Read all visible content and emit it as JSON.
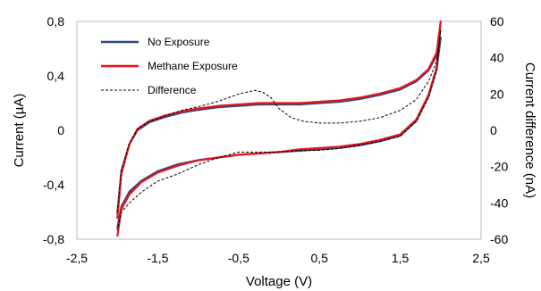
{
  "chart_data": {
    "type": "line",
    "xlabel": "Voltage (V)",
    "ylabel": "Current (µA)",
    "y2label": "Current difference (nA)",
    "xlim": [
      -2.5,
      2.5
    ],
    "ylim": [
      -0.8,
      0.8
    ],
    "y2lim": [
      -60,
      60
    ],
    "grid": false,
    "legend_position": "top-left",
    "x_ticks": [
      "-2,5",
      "-1,5",
      "-0,5",
      "0,5",
      "1,5",
      "2,5"
    ],
    "x_tick_values": [
      -2.5,
      -1.5,
      -0.5,
      0.5,
      1.5,
      2.5
    ],
    "y_ticks": [
      "0,8",
      "0,4",
      "0",
      "-0,4",
      "-0,8"
    ],
    "y_tick_values": [
      0.8,
      0.4,
      0,
      -0.4,
      -0.8
    ],
    "y2_ticks": [
      "60",
      "40",
      "20",
      "0",
      "-20",
      "-40",
      "-60"
    ],
    "y2_tick_values": [
      60,
      40,
      20,
      0,
      -20,
      -40,
      -60
    ],
    "series": [
      {
        "name": "No Exposure",
        "axis": "left",
        "color": "#2e4a7d",
        "dash": "solid",
        "x": [
          -2.0,
          -1.95,
          -1.85,
          -1.75,
          -1.6,
          -1.4,
          -1.2,
          -1.0,
          -0.75,
          -0.5,
          -0.25,
          0.0,
          0.25,
          0.5,
          0.75,
          1.0,
          1.25,
          1.5,
          1.7,
          1.85,
          1.95,
          2.0,
          2.0,
          1.95,
          1.85,
          1.7,
          1.5,
          1.25,
          1.0,
          0.75,
          0.5,
          0.25,
          0.0,
          -0.25,
          -0.5,
          -0.75,
          -1.0,
          -1.25,
          -1.5,
          -1.7,
          -1.85,
          -1.95,
          -2.0
        ],
        "y": [
          -0.62,
          -0.3,
          -0.1,
          0.0,
          0.06,
          0.1,
          0.13,
          0.15,
          0.17,
          0.18,
          0.19,
          0.19,
          0.19,
          0.2,
          0.21,
          0.23,
          0.26,
          0.3,
          0.36,
          0.44,
          0.55,
          0.68,
          0.68,
          0.45,
          0.25,
          0.07,
          -0.04,
          -0.08,
          -0.11,
          -0.13,
          -0.14,
          -0.15,
          -0.16,
          -0.17,
          -0.18,
          -0.2,
          -0.22,
          -0.25,
          -0.3,
          -0.37,
          -0.45,
          -0.56,
          -0.72
        ]
      },
      {
        "name": "Methane Exposure",
        "axis": "left",
        "color": "#e8131b",
        "dash": "solid",
        "x": [
          -2.0,
          -1.95,
          -1.85,
          -1.75,
          -1.6,
          -1.4,
          -1.2,
          -1.0,
          -0.75,
          -0.5,
          -0.25,
          0.0,
          0.25,
          0.5,
          0.75,
          1.0,
          1.25,
          1.5,
          1.7,
          1.85,
          1.95,
          2.0,
          2.0,
          1.95,
          1.85,
          1.7,
          1.5,
          1.25,
          1.0,
          0.75,
          0.5,
          0.25,
          0.0,
          -0.25,
          -0.5,
          -0.75,
          -1.0,
          -1.25,
          -1.5,
          -1.7,
          -1.85,
          -1.95,
          -2.0
        ],
        "y": [
          -0.65,
          -0.32,
          -0.1,
          0.01,
          0.07,
          0.11,
          0.14,
          0.16,
          0.18,
          0.19,
          0.2,
          0.2,
          0.2,
          0.21,
          0.22,
          0.24,
          0.27,
          0.31,
          0.37,
          0.45,
          0.57,
          0.8,
          0.8,
          0.46,
          0.26,
          0.08,
          -0.03,
          -0.07,
          -0.1,
          -0.12,
          -0.13,
          -0.14,
          -0.16,
          -0.17,
          -0.18,
          -0.2,
          -0.22,
          -0.26,
          -0.31,
          -0.38,
          -0.47,
          -0.58,
          -0.78
        ]
      },
      {
        "name": "Difference",
        "axis": "right",
        "color": "#000000",
        "dash": "3,2",
        "x": [
          -2.0,
          -1.95,
          -1.85,
          -1.75,
          -1.6,
          -1.4,
          -1.2,
          -1.0,
          -0.75,
          -0.5,
          -0.3,
          -0.2,
          -0.1,
          0.0,
          0.15,
          0.3,
          0.5,
          0.75,
          1.0,
          1.25,
          1.5,
          1.7,
          1.85,
          1.95,
          2.0,
          2.0,
          1.95,
          1.85,
          1.7,
          1.5,
          1.25,
          1.0,
          0.75,
          0.5,
          0.25,
          0.0,
          -0.25,
          -0.5,
          -0.75,
          -1.0,
          -1.25,
          -1.5,
          -1.7,
          -1.85,
          -1.95,
          -2.0
        ],
        "y": [
          -45,
          -22,
          -7,
          1,
          5,
          8,
          11,
          13,
          16,
          20,
          22,
          21,
          18,
          12,
          7,
          5,
          4,
          4,
          5,
          7,
          11,
          17,
          27,
          38,
          55,
          55,
          33,
          18,
          5,
          -3,
          -6,
          -8,
          -10,
          -11,
          -11,
          -12,
          -12,
          -12,
          -15,
          -19,
          -24,
          -28,
          -34,
          -40,
          -45,
          -55
        ]
      }
    ]
  }
}
